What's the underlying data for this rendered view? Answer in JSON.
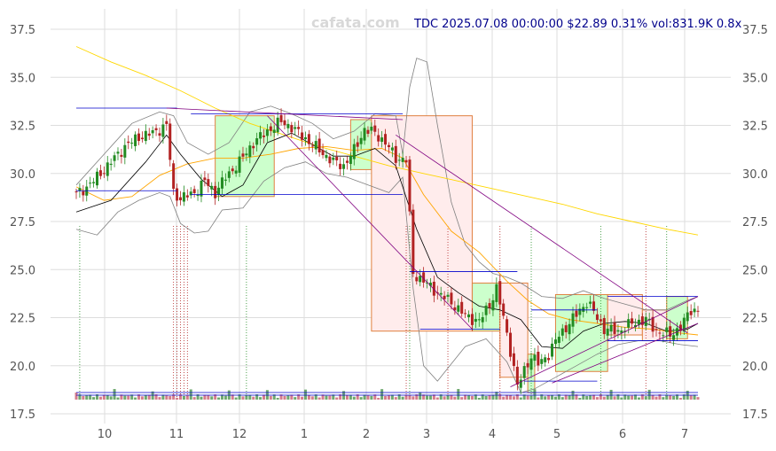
{
  "watermark": "cafata.com",
  "info": {
    "ticker": "TDC",
    "datetime": "2025.07.08 00:00:00",
    "price": "$22.89",
    "change": "0.31%",
    "volume": "vol:831.9K",
    "ratio": "0.8x"
  },
  "chart_data": {
    "type": "candlestick",
    "ylim": [
      17.5,
      37.5
    ],
    "y_ticks": [
      17.5,
      20.0,
      22.5,
      25.0,
      27.5,
      30.0,
      32.5,
      35.0,
      37.5
    ],
    "y_tick_labels": [
      "17.5",
      "20.0",
      "22.5",
      "25.0",
      "27.5",
      "30.0",
      "32.5",
      "35.0",
      "37.5"
    ],
    "x_tick_labels": [
      "10",
      "11",
      "12",
      "1",
      "2",
      "3",
      "4",
      "5",
      "6",
      "7"
    ],
    "grid": true,
    "colors": {
      "up": "#228b22",
      "down": "#b22222",
      "ma_short": "#000000",
      "ma_mid": "#ffa500",
      "ma_long": "#ffd700",
      "bollinger": "#808080",
      "trend": "#800080",
      "level": "#0000cd",
      "up_box_fill": "#ccffcc",
      "down_box_fill": "#ffecec",
      "box_stroke": "#e08040"
    },
    "close_path": [
      [
        0,
        28.9
      ],
      [
        3,
        29.3
      ],
      [
        6,
        29.8
      ],
      [
        10,
        30.6
      ],
      [
        14,
        31.4
      ],
      [
        18,
        31.9
      ],
      [
        22,
        32.1
      ],
      [
        26,
        32.5
      ],
      [
        28,
        29.0
      ],
      [
        30,
        28.7
      ],
      [
        34,
        29.0
      ],
      [
        37,
        29.6
      ],
      [
        40,
        29.0
      ],
      [
        43,
        29.8
      ],
      [
        47,
        30.6
      ],
      [
        51,
        31.6
      ],
      [
        55,
        32.2
      ],
      [
        59,
        32.7
      ],
      [
        62,
        32.4
      ],
      [
        66,
        31.8
      ],
      [
        70,
        31.2
      ],
      [
        74,
        30.6
      ],
      [
        77,
        30.4
      ],
      [
        80,
        31.2
      ],
      [
        83,
        32.3
      ],
      [
        86,
        32.1
      ],
      [
        89,
        31.6
      ],
      [
        92,
        30.8
      ],
      [
        95,
        30.7
      ],
      [
        97,
        24.8
      ],
      [
        100,
        24.4
      ],
      [
        104,
        23.8
      ],
      [
        108,
        23.3
      ],
      [
        112,
        22.6
      ],
      [
        116,
        22.3
      ],
      [
        119,
        23.2
      ],
      [
        121,
        24.0
      ],
      [
        123,
        22.5
      ],
      [
        125,
        20.8
      ],
      [
        127,
        18.9
      ],
      [
        129,
        19.8
      ],
      [
        131,
        20.5
      ],
      [
        133,
        20.1
      ],
      [
        136,
        20.6
      ],
      [
        139,
        21.6
      ],
      [
        142,
        22.2
      ],
      [
        145,
        22.9
      ],
      [
        147,
        23.3
      ],
      [
        149,
        22.8
      ],
      [
        152,
        21.9
      ],
      [
        156,
        21.8
      ],
      [
        160,
        22.2
      ],
      [
        164,
        22.4
      ],
      [
        167,
        21.8
      ],
      [
        171,
        21.6
      ],
      [
        174,
        22.0
      ],
      [
        177,
        22.9
      ],
      [
        179,
        22.9
      ]
    ],
    "ma_short": [
      [
        0,
        28.0
      ],
      [
        10,
        28.6
      ],
      [
        20,
        30.6
      ],
      [
        26,
        32.0
      ],
      [
        30,
        31.0
      ],
      [
        36,
        29.7
      ],
      [
        42,
        28.8
      ],
      [
        48,
        29.4
      ],
      [
        55,
        31.6
      ],
      [
        62,
        32.1
      ],
      [
        68,
        31.5
      ],
      [
        74,
        30.9
      ],
      [
        80,
        30.9
      ],
      [
        86,
        31.3
      ],
      [
        92,
        30.4
      ],
      [
        98,
        27.1
      ],
      [
        104,
        24.6
      ],
      [
        110,
        23.8
      ],
      [
        116,
        23.1
      ],
      [
        122,
        22.9
      ],
      [
        128,
        22.4
      ],
      [
        134,
        21.0
      ],
      [
        140,
        20.9
      ],
      [
        146,
        21.8
      ],
      [
        152,
        22.2
      ],
      [
        158,
        22.3
      ],
      [
        164,
        22.2
      ],
      [
        170,
        21.8
      ],
      [
        176,
        21.9
      ],
      [
        179,
        22.2
      ]
    ],
    "ma_mid": [
      [
        0,
        29.3
      ],
      [
        8,
        28.6
      ],
      [
        16,
        28.8
      ],
      [
        24,
        29.9
      ],
      [
        32,
        30.5
      ],
      [
        40,
        30.8
      ],
      [
        48,
        30.8
      ],
      [
        56,
        31.0
      ],
      [
        64,
        31.3
      ],
      [
        72,
        31.4
      ],
      [
        80,
        31.2
      ],
      [
        88,
        31.3
      ],
      [
        94,
        30.8
      ],
      [
        100,
        28.9
      ],
      [
        108,
        27.0
      ],
      [
        116,
        25.9
      ],
      [
        124,
        24.4
      ],
      [
        130,
        23.4
      ],
      [
        136,
        22.7
      ],
      [
        142,
        22.4
      ],
      [
        150,
        22.2
      ],
      [
        158,
        22.0
      ],
      [
        166,
        21.9
      ],
      [
        174,
        21.7
      ],
      [
        179,
        21.6
      ]
    ],
    "ma_long": [
      [
        0,
        36.6
      ],
      [
        10,
        35.8
      ],
      [
        20,
        35.1
      ],
      [
        30,
        34.3
      ],
      [
        40,
        33.4
      ],
      [
        50,
        32.6
      ],
      [
        60,
        32.0
      ],
      [
        70,
        31.4
      ],
      [
        80,
        30.9
      ],
      [
        90,
        30.4
      ],
      [
        100,
        30.0
      ],
      [
        110,
        29.6
      ],
      [
        120,
        29.2
      ],
      [
        130,
        28.8
      ],
      [
        140,
        28.4
      ],
      [
        150,
        27.9
      ],
      [
        160,
        27.5
      ],
      [
        170,
        27.1
      ],
      [
        179,
        26.8
      ]
    ],
    "bb_upper": [
      [
        0,
        29.4
      ],
      [
        8,
        31.0
      ],
      [
        16,
        32.6
      ],
      [
        24,
        33.2
      ],
      [
        28,
        33.0
      ],
      [
        32,
        31.6
      ],
      [
        38,
        31.0
      ],
      [
        44,
        31.6
      ],
      [
        50,
        33.2
      ],
      [
        56,
        33.5
      ],
      [
        62,
        33.1
      ],
      [
        68,
        32.6
      ],
      [
        74,
        31.8
      ],
      [
        80,
        32.2
      ],
      [
        86,
        33.1
      ],
      [
        92,
        33.0
      ],
      [
        94,
        31.0
      ],
      [
        96,
        34.5
      ],
      [
        98,
        36.0
      ],
      [
        101,
        35.8
      ],
      [
        104,
        32.5
      ],
      [
        108,
        28.5
      ],
      [
        112,
        26.3
      ],
      [
        116,
        25.4
      ],
      [
        120,
        24.8
      ],
      [
        124,
        24.6
      ],
      [
        128,
        24.3
      ],
      [
        134,
        23.6
      ],
      [
        140,
        23.5
      ],
      [
        146,
        23.9
      ],
      [
        152,
        23.5
      ],
      [
        158,
        23.2
      ],
      [
        164,
        22.9
      ],
      [
        170,
        22.9
      ],
      [
        176,
        23.4
      ],
      [
        179,
        23.6
      ]
    ],
    "bb_lower": [
      [
        0,
        27.1
      ],
      [
        6,
        26.8
      ],
      [
        12,
        28.0
      ],
      [
        18,
        28.6
      ],
      [
        24,
        29.0
      ],
      [
        27,
        28.8
      ],
      [
        30,
        27.4
      ],
      [
        34,
        26.9
      ],
      [
        38,
        27.0
      ],
      [
        42,
        28.1
      ],
      [
        48,
        28.2
      ],
      [
        54,
        29.6
      ],
      [
        60,
        30.3
      ],
      [
        66,
        30.6
      ],
      [
        72,
        30.0
      ],
      [
        78,
        29.8
      ],
      [
        84,
        29.4
      ],
      [
        90,
        29.0
      ],
      [
        94,
        29.8
      ],
      [
        97,
        24.0
      ],
      [
        100,
        20.0
      ],
      [
        104,
        19.2
      ],
      [
        108,
        20.1
      ],
      [
        112,
        21.0
      ],
      [
        118,
        21.4
      ],
      [
        124,
        20.2
      ],
      [
        128,
        18.6
      ],
      [
        132,
        18.8
      ],
      [
        138,
        19.4
      ],
      [
        144,
        20.0
      ],
      [
        150,
        20.6
      ],
      [
        156,
        21.1
      ],
      [
        162,
        21.3
      ],
      [
        168,
        21.3
      ],
      [
        174,
        21.1
      ],
      [
        179,
        21.0
      ]
    ],
    "boxes": [
      {
        "kind": "up",
        "from": 40,
        "to": 57,
        "low": 28.8,
        "high": 33.0
      },
      {
        "kind": "up",
        "from": 79,
        "to": 85,
        "low": 30.2,
        "high": 32.8
      },
      {
        "kind": "down",
        "from": 85,
        "to": 114,
        "low": 21.8,
        "high": 33.0
      },
      {
        "kind": "up",
        "from": 114,
        "to": 122,
        "low": 21.8,
        "high": 24.3
      },
      {
        "kind": "down",
        "from": 122,
        "to": 130,
        "low": 19.4,
        "high": 24.3
      },
      {
        "kind": "up",
        "from": 130,
        "to": 132,
        "low": 18.6,
        "high": 20.6
      },
      {
        "kind": "up",
        "from": 138,
        "to": 153,
        "low": 19.7,
        "high": 23.7
      },
      {
        "kind": "down",
        "from": 153,
        "to": 163,
        "low": 21.6,
        "high": 23.7
      },
      {
        "kind": "down",
        "from": 163,
        "to": 170,
        "low": 21.3,
        "high": 22.9
      },
      {
        "kind": "up",
        "from": 170,
        "to": 176,
        "low": 21.4,
        "high": 23.6
      }
    ],
    "level_lines": [
      {
        "from": 0,
        "to": 29,
        "y": 33.4
      },
      {
        "from": 33,
        "to": 94,
        "y": 33.1
      },
      {
        "from": 0,
        "to": 29,
        "y": 29.1
      },
      {
        "from": 33,
        "to": 94,
        "y": 28.9
      },
      {
        "from": 96,
        "to": 127,
        "y": 24.9
      },
      {
        "from": 99,
        "to": 122,
        "y": 21.9
      },
      {
        "from": 131,
        "to": 150,
        "y": 22.9
      },
      {
        "from": 129,
        "to": 150,
        "y": 19.2
      },
      {
        "from": 153,
        "to": 179,
        "y": 23.6
      },
      {
        "from": 153,
        "to": 179,
        "y": 21.3
      }
    ],
    "trend_lines": [
      {
        "from": 26,
        "y1": 33.4,
        "to": 94,
        "y2": 32.8
      },
      {
        "from": 55,
        "y1": 33.0,
        "to": 114,
        "y2": 21.9
      },
      {
        "from": 92,
        "y1": 32.0,
        "to": 176,
        "y2": 21.7
      },
      {
        "from": 125,
        "y1": 18.9,
        "to": 179,
        "y2": 23.6
      },
      {
        "from": 137,
        "y1": 19.1,
        "to": 179,
        "y2": 22.2
      }
    ],
    "event_markers": [
      {
        "at": 1,
        "color": "#228b22"
      },
      {
        "at": 28,
        "color": "#b22222"
      },
      {
        "at": 29,
        "color": "#b22222"
      },
      {
        "at": 30,
        "color": "#b22222"
      },
      {
        "at": 31,
        "color": "#b22222"
      },
      {
        "at": 32,
        "color": "#b22222"
      },
      {
        "at": 49,
        "color": "#228b22"
      },
      {
        "at": 95,
        "color": "#b22222"
      },
      {
        "at": 96,
        "color": "#228b22"
      },
      {
        "at": 107,
        "color": "#b22222"
      },
      {
        "at": 122,
        "color": "#b22222"
      },
      {
        "at": 131,
        "color": "#228b22"
      },
      {
        "at": 151,
        "color": "#228b22"
      },
      {
        "at": 164,
        "color": "#b22222"
      },
      {
        "at": 170,
        "color": "#228b22"
      }
    ]
  }
}
